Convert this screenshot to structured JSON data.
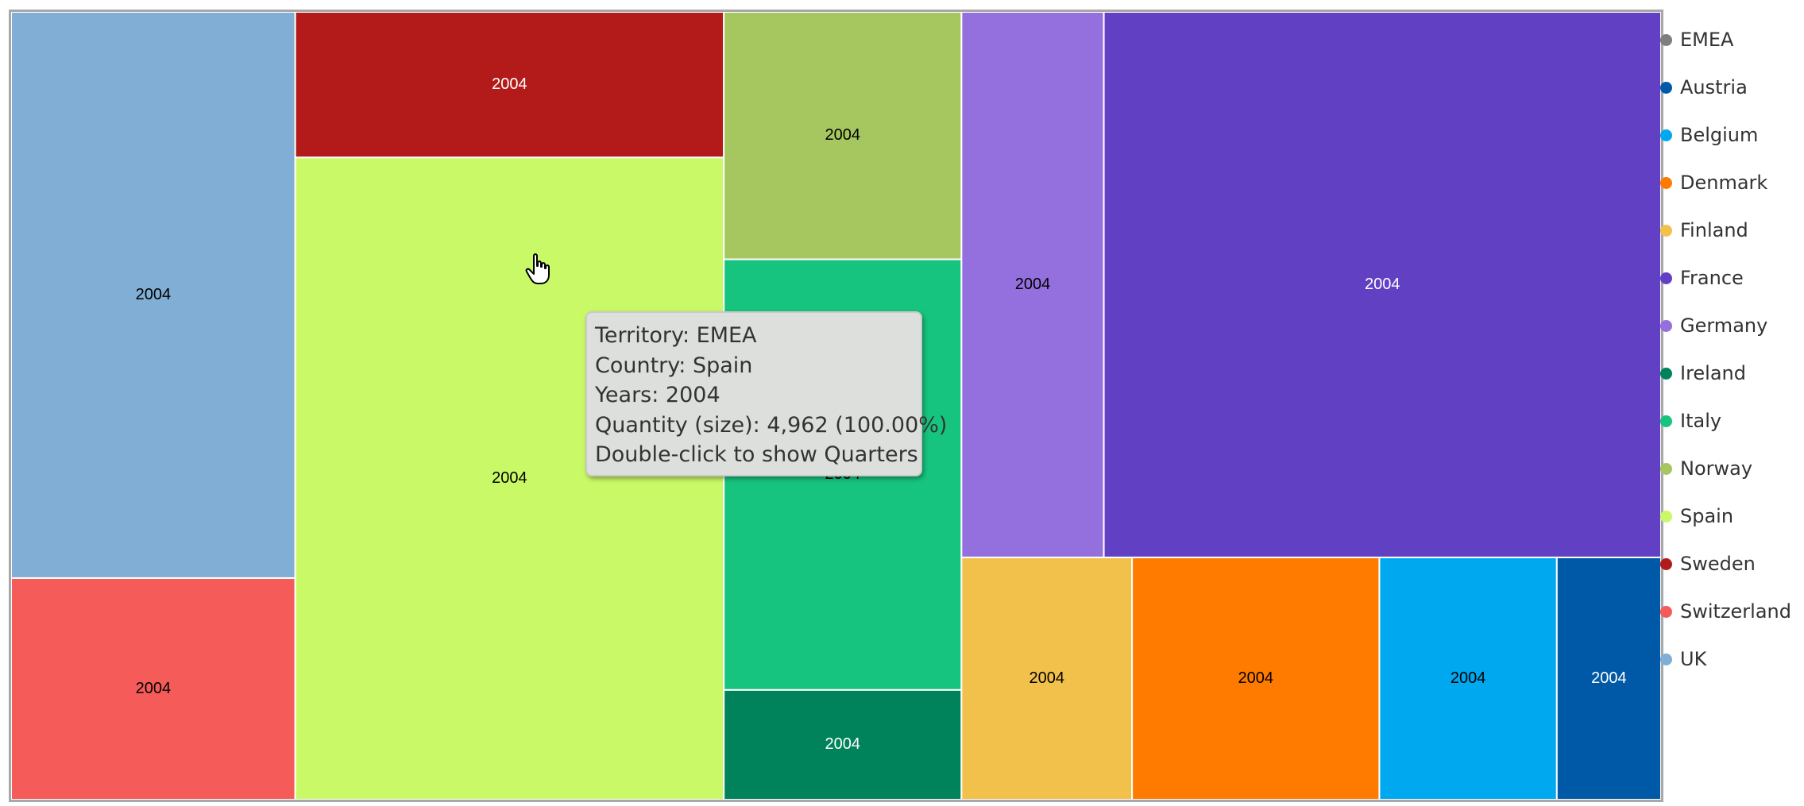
{
  "chart_data": {
    "type": "treemap",
    "label_text": "2004",
    "colors": {
      "EMEA": "#7e7e7e",
      "Austria": "#0059a6",
      "Belgium": "#00a8f0",
      "Denmark": "#ff7b00",
      "Finland": "#f2c14b",
      "France": "#6240c4",
      "Germany": "#9470de",
      "Ireland": "#00835a",
      "Italy": "#17c47f",
      "Norway": "#a6c760",
      "Spain": "#c9f966",
      "Sweden": "#b31b1b",
      "Switzerland": "#f55b59",
      "UK": "#80aed4"
    },
    "legend": [
      "EMEA",
      "Austria",
      "Belgium",
      "Denmark",
      "Finland",
      "France",
      "Germany",
      "Ireland",
      "Italy",
      "Norway",
      "Spain",
      "Sweden",
      "Switzerland",
      "UK"
    ],
    "tiles": [
      {
        "country": "UK",
        "year": "2004",
        "size": 2900,
        "label_color": "#000000"
      },
      {
        "country": "Switzerland",
        "year": "2004",
        "size": 1135,
        "label_color": "#000000"
      },
      {
        "country": "Sweden",
        "year": "2004",
        "size": 1125,
        "label_color": "#ffffff"
      },
      {
        "country": "Spain",
        "year": "2004",
        "size": 4962,
        "label_color": "#000000"
      },
      {
        "country": "Norway",
        "year": "2004",
        "size": 1060,
        "label_color": "#000000"
      },
      {
        "country": "Italy",
        "year": "2004",
        "size": 1845,
        "label_color": "#000000"
      },
      {
        "country": "Ireland",
        "year": "2004",
        "size": 470,
        "label_color": "#ffffff"
      },
      {
        "country": "Germany",
        "year": "2004",
        "size": 1400,
        "label_color": "#000000"
      },
      {
        "country": "France",
        "year": "2004",
        "size": 5480,
        "label_color": "#ffffff"
      },
      {
        "country": "Finland",
        "year": "2004",
        "size": 745,
        "label_color": "#000000"
      },
      {
        "country": "Denmark",
        "year": "2004",
        "size": 1080,
        "label_color": "#000000"
      },
      {
        "country": "Belgium",
        "year": "2004",
        "size": 775,
        "label_color": "#000000"
      },
      {
        "country": "Austria",
        "year": "2004",
        "size": 455,
        "label_color": "#ffffff"
      }
    ]
  },
  "tooltip": {
    "lines": [
      "Territory: EMEA",
      "Country: Spain",
      "Years: 2004",
      "Quantity (size): 4,962 (100.00%)",
      "Double-click to show Quarters"
    ]
  },
  "icons": {
    "cursor": "hand-pointer-icon"
  }
}
